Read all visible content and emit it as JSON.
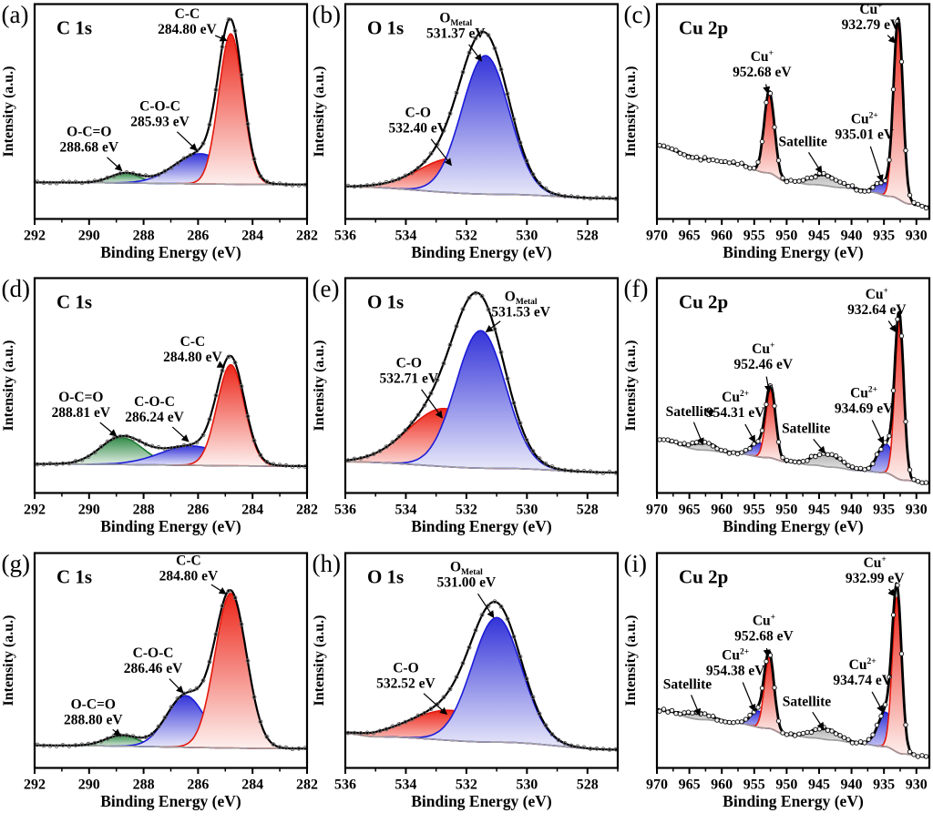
{
  "figure": {
    "xlabel": "Binding Energy (eV)",
    "ylabel": "Intensity (a.u.)"
  },
  "palette": {
    "red": {
      "stroke": "#e3170c",
      "top": "#ed2619",
      "bottom": "#fdf0ee"
    },
    "blue": {
      "stroke": "#1b1bd8",
      "top": "#3434d9",
      "bottom": "#ebebfa"
    },
    "green": {
      "stroke": "#1c7c33",
      "top": "#338c49",
      "bottom": "#e8f2ea"
    },
    "gray": {
      "stroke": "#8e8e8e",
      "top": "#b2b2b2",
      "bottom": "#f3f3f3"
    }
  },
  "line_colors": {
    "envelope": "#000000",
    "baseline": "#9e9e9e",
    "points": "#666666",
    "axis": "#000000"
  },
  "chart_data": [
    {
      "id": "a",
      "tag": "(a)",
      "title": "C 1s",
      "type": "area",
      "noisy": false,
      "xlabel": "Binding Energy (eV)",
      "ylabel": "Intensity (a.u.)",
      "x_range": [
        292,
        282
      ],
      "x_major_ticks": [
        292,
        290,
        288,
        286,
        284,
        282
      ],
      "x_minor_step": 1,
      "baseline": [
        [
          282,
          0.16
        ],
        [
          292,
          0.17
        ]
      ],
      "peaks": [
        {
          "name": "O-C=O",
          "center_eV": 288.68,
          "amplitude": 0.045,
          "sigma": 0.55,
          "color": "green"
        },
        {
          "name": "C-O-C",
          "center_eV": 285.93,
          "amplitude": 0.14,
          "sigma": 0.95,
          "color": "blue"
        },
        {
          "name": "C-C",
          "center_eV": 284.8,
          "amplitude": 0.7,
          "sigma": 0.44,
          "color": "red"
        }
      ],
      "annotations": [
        {
          "lines": [
            "C-C",
            "284.80 eV"
          ],
          "tx": 286.4,
          "ty": 0.92,
          "ax": 284.95,
          "ay": 0.83
        },
        {
          "lines": [
            "C-O-C",
            "285.93 eV"
          ],
          "tx": 287.4,
          "ty": 0.49,
          "ax": 286.05,
          "ay": 0.32
        },
        {
          "lines": [
            "O-C=O",
            "288.68 eV"
          ],
          "tx": 290.0,
          "ty": 0.37,
          "ax": 288.8,
          "ay": 0.225
        }
      ]
    },
    {
      "id": "b",
      "tag": "(b)",
      "title": "O 1s",
      "type": "area",
      "noisy": false,
      "xlabel": "Binding Energy (eV)",
      "ylabel": "Intensity (a.u.)",
      "x_range": [
        536,
        527
      ],
      "x_major_ticks": [
        536,
        534,
        532,
        530,
        528
      ],
      "x_minor_step": 1,
      "baseline": [
        [
          527,
          0.095
        ],
        [
          531,
          0.115
        ],
        [
          536,
          0.15
        ]
      ],
      "peaks": [
        {
          "name": "C-O",
          "center_eV": 532.4,
          "amplitude": 0.16,
          "sigma": 1.15,
          "color": "red"
        },
        {
          "name": "O_Metal",
          "center_eV": 531.37,
          "amplitude": 0.645,
          "sigma": 0.78,
          "color": "blue"
        }
      ],
      "annotations": [
        {
          "lines": [
            "O~Metal~",
            "531.37 eV"
          ],
          "tx": 532.35,
          "ty": 0.9,
          "ax": 531.5,
          "ay": 0.735
        },
        {
          "lines": [
            "C-O",
            "532.40 eV"
          ],
          "tx": 533.6,
          "ty": 0.46,
          "ax": 532.5,
          "ay": 0.25
        }
      ]
    },
    {
      "id": "c",
      "tag": "(c)",
      "title": "Cu 2p",
      "type": "area",
      "noisy": true,
      "xlabel": "Binding Energy (eV)",
      "ylabel": "Intensity (a.u.)",
      "x_range": [
        970,
        928
      ],
      "x_major_ticks": [
        970,
        965,
        960,
        955,
        950,
        945,
        940,
        935,
        930
      ],
      "x_minor_step": 2.5,
      "baseline": [
        [
          928,
          0.055
        ],
        [
          931,
          0.07
        ],
        [
          934,
          0.105
        ],
        [
          937,
          0.125
        ],
        [
          941,
          0.145
        ],
        [
          946,
          0.16
        ],
        [
          950,
          0.175
        ],
        [
          953,
          0.215
        ],
        [
          958,
          0.26
        ],
        [
          963,
          0.28
        ],
        [
          970,
          0.34
        ]
      ],
      "peaks": [
        {
          "name": "Satellite",
          "center_eV": 944.3,
          "amplitude": 0.05,
          "sigma": 2.2,
          "color": "gray"
        },
        {
          "name": "Cu2+",
          "center_eV": 935.01,
          "amplitude": 0.06,
          "sigma": 1.2,
          "color": "blue"
        },
        {
          "name": "Cu+",
          "center_eV": 952.68,
          "amplitude": 0.38,
          "sigma": 0.8,
          "color": "red"
        },
        {
          "name": "Cu+",
          "center_eV": 932.79,
          "amplitude": 0.83,
          "sigma": 0.72,
          "color": "red"
        }
      ],
      "annotations": [
        {
          "lines": [
            "Cu^+^",
            "932.79 eV"
          ],
          "tx": 937.0,
          "ty": 0.94,
          "ax": 933.25,
          "ay": 0.82
        },
        {
          "lines": [
            "Cu^+^",
            "952.68 eV"
          ],
          "tx": 953.8,
          "ty": 0.72,
          "ax": 952.9,
          "ay": 0.585
        },
        {
          "lines": [
            "Satellite"
          ],
          "tx": 947.5,
          "ty": 0.36,
          "ax": 944.6,
          "ay": 0.215
        },
        {
          "lines": [
            "Cu^2+^",
            "935.01 eV"
          ],
          "tx": 938.0,
          "ty": 0.43,
          "ax": 935.3,
          "ay": 0.175
        }
      ]
    },
    {
      "id": "d",
      "tag": "(d)",
      "title": "C 1s",
      "type": "area",
      "noisy": false,
      "xlabel": "Binding Energy (eV)",
      "ylabel": "Intensity (a.u.)",
      "x_range": [
        292,
        282
      ],
      "x_major_ticks": [
        292,
        290,
        288,
        286,
        284,
        282
      ],
      "x_minor_step": 1,
      "baseline": [
        [
          282,
          0.125
        ],
        [
          292,
          0.135
        ]
      ],
      "peaks": [
        {
          "name": "O-C=O",
          "center_eV": 288.81,
          "amplitude": 0.125,
          "sigma": 0.78,
          "color": "green"
        },
        {
          "name": "C-O-C",
          "center_eV": 286.24,
          "amplitude": 0.09,
          "sigma": 1.15,
          "color": "blue"
        },
        {
          "name": "C-C",
          "center_eV": 284.8,
          "amplitude": 0.47,
          "sigma": 0.5,
          "color": "red"
        }
      ],
      "annotations": [
        {
          "lines": [
            "C-C",
            "284.80 eV"
          ],
          "tx": 286.2,
          "ty": 0.67,
          "ax": 285.05,
          "ay": 0.585
        },
        {
          "lines": [
            "C-O-C",
            "286.24 eV"
          ],
          "tx": 287.6,
          "ty": 0.39,
          "ax": 286.35,
          "ay": 0.24
        },
        {
          "lines": [
            "O-C=O",
            "288.81 eV"
          ],
          "tx": 290.3,
          "ty": 0.41,
          "ax": 289.0,
          "ay": 0.265
        }
      ]
    },
    {
      "id": "e",
      "tag": "(e)",
      "title": "O 1s",
      "type": "area",
      "noisy": false,
      "xlabel": "Binding Energy (eV)",
      "ylabel": "Intensity (a.u.)",
      "x_range": [
        536,
        527
      ],
      "x_major_ticks": [
        536,
        534,
        532,
        530,
        528
      ],
      "x_minor_step": 1,
      "baseline": [
        [
          527,
          0.095
        ],
        [
          531,
          0.115
        ],
        [
          536,
          0.145
        ]
      ],
      "peaks": [
        {
          "name": "C-O",
          "center_eV": 532.71,
          "amplitude": 0.27,
          "sigma": 1.2,
          "color": "red"
        },
        {
          "name": "O_Metal",
          "center_eV": 531.53,
          "amplitude": 0.64,
          "sigma": 0.82,
          "color": "blue"
        }
      ],
      "annotations": [
        {
          "lines": [
            "O~Metal~",
            "531.53 eV"
          ],
          "tx": 530.2,
          "ty": 0.88,
          "ax": 531.35,
          "ay": 0.75
        },
        {
          "lines": [
            "C-O",
            "532.71 eV"
          ],
          "tx": 533.9,
          "ty": 0.57,
          "ax": 532.8,
          "ay": 0.35
        }
      ]
    },
    {
      "id": "f",
      "tag": "(f)",
      "title": "Cu 2p",
      "type": "area",
      "noisy": true,
      "xlabel": "Binding Energy (eV)",
      "ylabel": "Intensity (a.u.)",
      "x_range": [
        970,
        928
      ],
      "x_major_ticks": [
        970,
        965,
        960,
        955,
        950,
        945,
        940,
        935,
        930
      ],
      "x_minor_step": 2.5,
      "baseline": [
        [
          928,
          0.045
        ],
        [
          932,
          0.06
        ],
        [
          935,
          0.095
        ],
        [
          939,
          0.105
        ],
        [
          943,
          0.12
        ],
        [
          946,
          0.13
        ],
        [
          950,
          0.145
        ],
        [
          953,
          0.165
        ],
        [
          958,
          0.185
        ],
        [
          963,
          0.2
        ],
        [
          970,
          0.25
        ]
      ],
      "peaks": [
        {
          "name": "Satellite",
          "center_eV": 962.8,
          "amplitude": 0.035,
          "sigma": 1.8,
          "color": "gray"
        },
        {
          "name": "Satellite",
          "center_eV": 943.9,
          "amplitude": 0.06,
          "sigma": 2.2,
          "color": "gray"
        },
        {
          "name": "Cu2+",
          "center_eV": 954.31,
          "amplitude": 0.065,
          "sigma": 1.2,
          "color": "blue"
        },
        {
          "name": "Cu2+",
          "center_eV": 934.69,
          "amplitude": 0.135,
          "sigma": 1.3,
          "color": "blue"
        },
        {
          "name": "Cu+",
          "center_eV": 952.46,
          "amplitude": 0.32,
          "sigma": 0.75,
          "color": "red"
        },
        {
          "name": "Cu+",
          "center_eV": 932.64,
          "amplitude": 0.74,
          "sigma": 0.68,
          "color": "red"
        }
      ],
      "annotations": [
        {
          "lines": [
            "Cu^+^",
            "932.64 eV"
          ],
          "tx": 936.1,
          "ty": 0.89,
          "ax": 933.15,
          "ay": 0.75
        },
        {
          "lines": [
            "Cu^2+^",
            "934.69 eV"
          ],
          "tx": 938.1,
          "ty": 0.43,
          "ax": 935.1,
          "ay": 0.23
        },
        {
          "lines": [
            "Cu^+^",
            "952.46 eV"
          ],
          "tx": 953.6,
          "ty": 0.635,
          "ax": 952.7,
          "ay": 0.47
        },
        {
          "lines": [
            "Cu^2+^",
            "954.31 eV"
          ],
          "tx": 957.9,
          "ty": 0.41,
          "ax": 954.9,
          "ay": 0.237
        },
        {
          "lines": [
            "Satellite"
          ],
          "tx": 964.9,
          "ty": 0.38,
          "ax": 962.9,
          "ay": 0.225
        },
        {
          "lines": [
            "Satellite"
          ],
          "tx": 947.0,
          "ty": 0.3,
          "ax": 944.1,
          "ay": 0.185
        }
      ]
    },
    {
      "id": "g",
      "tag": "(g)",
      "title": "C 1s",
      "type": "area",
      "noisy": false,
      "xlabel": "Binding Energy (eV)",
      "ylabel": "Intensity (a.u.)",
      "x_range": [
        292,
        282
      ],
      "x_major_ticks": [
        292,
        290,
        288,
        286,
        284,
        282
      ],
      "x_minor_step": 1,
      "baseline": [
        [
          282,
          0.09
        ],
        [
          292,
          0.105
        ]
      ],
      "peaks": [
        {
          "name": "O-C=O",
          "center_eV": 288.8,
          "amplitude": 0.05,
          "sigma": 0.6,
          "color": "green"
        },
        {
          "name": "C-O-C",
          "center_eV": 286.46,
          "amplitude": 0.24,
          "sigma": 0.7,
          "color": "blue"
        },
        {
          "name": "C-C",
          "center_eV": 284.8,
          "amplitude": 0.72,
          "sigma": 0.58,
          "color": "red"
        }
      ],
      "annotations": [
        {
          "lines": [
            "C-C",
            "284.80 eV"
          ],
          "tx": 286.35,
          "ty": 0.93,
          "ax": 284.98,
          "ay": 0.81
        },
        {
          "lines": [
            "C-O-C",
            "286.46 eV"
          ],
          "tx": 287.65,
          "ty": 0.5,
          "ax": 286.55,
          "ay": 0.35
        },
        {
          "lines": [
            "O-C=O",
            "288.80 eV"
          ],
          "tx": 289.85,
          "ty": 0.26,
          "ax": 288.85,
          "ay": 0.15
        }
      ]
    },
    {
      "id": "h",
      "tag": "(h)",
      "title": "O 1s",
      "type": "area",
      "noisy": false,
      "xlabel": "Binding Energy (eV)",
      "ylabel": "Intensity (a.u.)",
      "x_range": [
        536,
        527
      ],
      "x_major_ticks": [
        536,
        534,
        532,
        530,
        528
      ],
      "x_minor_step": 1,
      "baseline": [
        [
          527,
          0.085
        ],
        [
          531,
          0.12
        ],
        [
          535,
          0.145
        ],
        [
          536,
          0.16
        ]
      ],
      "peaks": [
        {
          "name": "C-O",
          "center_eV": 532.52,
          "amplitude": 0.14,
          "sigma": 1.3,
          "color": "red"
        },
        {
          "name": "O_Metal",
          "center_eV": 531.0,
          "amplitude": 0.58,
          "sigma": 0.82,
          "color": "blue"
        }
      ],
      "annotations": [
        {
          "lines": [
            "O~Metal~",
            "531.00 eV"
          ],
          "tx": 532.0,
          "ty": 0.9,
          "ax": 531.1,
          "ay": 0.7
        },
        {
          "lines": [
            "C-O",
            "532.52 eV"
          ],
          "tx": 534.0,
          "ty": 0.43,
          "ax": 532.65,
          "ay": 0.25
        }
      ]
    },
    {
      "id": "i",
      "tag": "(i)",
      "title": "Cu 2p",
      "type": "area",
      "noisy": true,
      "xlabel": "Binding Energy (eV)",
      "ylabel": "Intensity (a.u.)",
      "x_range": [
        970,
        928
      ],
      "x_major_ticks": [
        970,
        965,
        960,
        955,
        950,
        945,
        940,
        935,
        930
      ],
      "x_minor_step": 2.5,
      "baseline": [
        [
          928,
          0.05
        ],
        [
          932,
          0.065
        ],
        [
          935,
          0.1
        ],
        [
          939,
          0.115
        ],
        [
          943,
          0.13
        ],
        [
          946,
          0.14
        ],
        [
          950,
          0.155
        ],
        [
          953,
          0.185
        ],
        [
          958,
          0.21
        ],
        [
          963,
          0.225
        ],
        [
          970,
          0.27
        ]
      ],
      "peaks": [
        {
          "name": "Satellite",
          "center_eV": 963.5,
          "amplitude": 0.03,
          "sigma": 1.8,
          "color": "gray"
        },
        {
          "name": "Satellite",
          "center_eV": 944.2,
          "amplitude": 0.05,
          "sigma": 2.0,
          "color": "gray"
        },
        {
          "name": "Cu2+",
          "center_eV": 954.38,
          "amplitude": 0.075,
          "sigma": 1.2,
          "color": "blue"
        },
        {
          "name": "Cu2+",
          "center_eV": 934.74,
          "amplitude": 0.16,
          "sigma": 1.25,
          "color": "blue"
        },
        {
          "name": "Cu+",
          "center_eV": 952.68,
          "amplitude": 0.33,
          "sigma": 0.75,
          "color": "red"
        },
        {
          "name": "Cu+",
          "center_eV": 932.99,
          "amplitude": 0.72,
          "sigma": 0.72,
          "color": "red"
        }
      ],
      "annotations": [
        {
          "lines": [
            "Cu^+^",
            "932.99 eV"
          ],
          "tx": 936.4,
          "ty": 0.92,
          "ax": 933.35,
          "ay": 0.8
        },
        {
          "lines": [
            "Cu^2+^",
            "934.74 eV"
          ],
          "tx": 938.3,
          "ty": 0.445,
          "ax": 935.15,
          "ay": 0.26
        },
        {
          "lines": [
            "Cu^+^",
            "952.68 eV"
          ],
          "tx": 953.5,
          "ty": 0.65,
          "ax": 952.9,
          "ay": 0.52
        },
        {
          "lines": [
            "Cu^2+^",
            "954.38 eV"
          ],
          "tx": 957.9,
          "ty": 0.49,
          "ax": 954.95,
          "ay": 0.265
        },
        {
          "lines": [
            "Satellite"
          ],
          "tx": 965.3,
          "ty": 0.39,
          "ax": 963.4,
          "ay": 0.245
        },
        {
          "lines": [
            "Satellite"
          ],
          "tx": 946.9,
          "ty": 0.31,
          "ax": 944.3,
          "ay": 0.18
        }
      ]
    }
  ]
}
